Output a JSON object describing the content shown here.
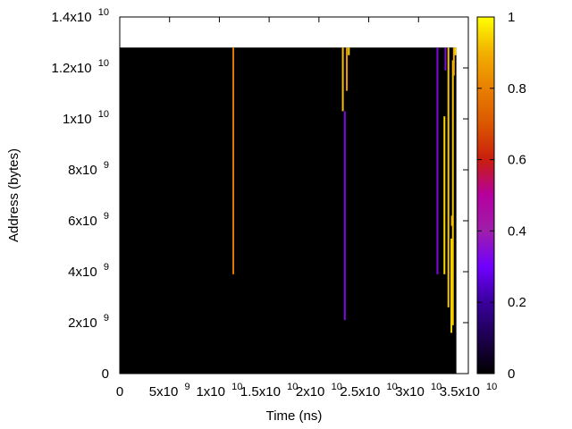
{
  "chart_data": {
    "type": "heatmap",
    "title": "",
    "xlabel": "Time (ns)",
    "ylabel": "Address (bytes)",
    "xlim": [
      0,
      35000000000
    ],
    "ylim": [
      0,
      14000000000
    ],
    "data_extent": {
      "x_max": 33800000000,
      "y_max": 12800000000
    },
    "background_value": 0,
    "x_ticks": [
      {
        "value": 0,
        "base": "0"
      },
      {
        "value": 5000000000,
        "base": "5x10",
        "exp": "9"
      },
      {
        "value": 10000000000,
        "base": "1x10",
        "exp": "10"
      },
      {
        "value": 15000000000,
        "base": "1.5x10",
        "exp": "10"
      },
      {
        "value": 20000000000,
        "base": "2x10",
        "exp": "10"
      },
      {
        "value": 25000000000,
        "base": "2.5x10",
        "exp": "10"
      },
      {
        "value": 30000000000,
        "base": "3x10",
        "exp": "10"
      },
      {
        "value": 35000000000,
        "base": "3.5x10",
        "exp": "10"
      }
    ],
    "y_ticks": [
      {
        "value": 0,
        "base": "0"
      },
      {
        "value": 2000000000,
        "base": "2x10",
        "exp": "9"
      },
      {
        "value": 4000000000,
        "base": "4x10",
        "exp": "9"
      },
      {
        "value": 6000000000,
        "base": "6x10",
        "exp": "9"
      },
      {
        "value": 8000000000,
        "base": "8x10",
        "exp": "9"
      },
      {
        "value": 10000000000,
        "base": "1x10",
        "exp": "10"
      },
      {
        "value": 12000000000,
        "base": "1.2x10",
        "exp": "10"
      },
      {
        "value": 14000000000,
        "base": "1.4x10",
        "exp": "10"
      }
    ],
    "colorbar": {
      "range": [
        0,
        1
      ],
      "ticks": [
        {
          "value": 0,
          "label": "0"
        },
        {
          "value": 0.2,
          "label": "0.2"
        },
        {
          "value": 0.4,
          "label": "0.4"
        },
        {
          "value": 0.6,
          "label": "0.6"
        },
        {
          "value": 0.8,
          "label": "0.8"
        },
        {
          "value": 1,
          "label": "1"
        }
      ],
      "stops": [
        {
          "offset": 0.0,
          "color": "#000000"
        },
        {
          "offset": 0.2,
          "color": "#39009b"
        },
        {
          "offset": 0.3,
          "color": "#7000ff"
        },
        {
          "offset": 0.4,
          "color": "#9f1eaa"
        },
        {
          "offset": 0.5,
          "color": "#b5009f"
        },
        {
          "offset": 0.6,
          "color": "#c91e0d"
        },
        {
          "offset": 0.7,
          "color": "#db5700"
        },
        {
          "offset": 0.8,
          "color": "#e88000"
        },
        {
          "offset": 0.9,
          "color": "#f2b000"
        },
        {
          "offset": 1.0,
          "color": "#ffff00"
        }
      ]
    },
    "streaks": [
      {
        "x": 11400000000,
        "y0": 3900000000,
        "y1": 12800000000,
        "value": 0.78
      },
      {
        "x": 22400000000,
        "y0": 10300000000,
        "y1": 12800000000,
        "value": 0.92
      },
      {
        "x": 22600000000,
        "y0": 2100000000,
        "y1": 10300000000,
        "value": 0.33
      },
      {
        "x": 22800000000,
        "y0": 11100000000,
        "y1": 12800000000,
        "value": 0.85
      },
      {
        "x": 23000000000,
        "y0": 12500000000,
        "y1": 12800000000,
        "value": 0.95
      },
      {
        "x": 31900000000,
        "y0": 3900000000,
        "y1": 12800000000,
        "value": 0.33
      },
      {
        "x": 32600000000,
        "y0": 3900000000,
        "y1": 10100000000,
        "value": 0.95
      },
      {
        "x": 32700000000,
        "y0": 11900000000,
        "y1": 12800000000,
        "value": 0.33
      },
      {
        "x": 33000000000,
        "y0": 2600000000,
        "y1": 12800000000,
        "value": 0.93
      },
      {
        "x": 33300000000,
        "y0": 1600000000,
        "y1": 5300000000,
        "value": 0.95
      },
      {
        "x": 33350000000,
        "y0": 5800000000,
        "y1": 6200000000,
        "value": 0.9
      },
      {
        "x": 33450000000,
        "y0": 1900000000,
        "y1": 12300000000,
        "value": 0.93
      },
      {
        "x": 33550000000,
        "y0": 11700000000,
        "y1": 12800000000,
        "value": 0.88
      },
      {
        "x": 33700000000,
        "y0": 12500000000,
        "y1": 12800000000,
        "value": 0.95
      }
    ]
  }
}
